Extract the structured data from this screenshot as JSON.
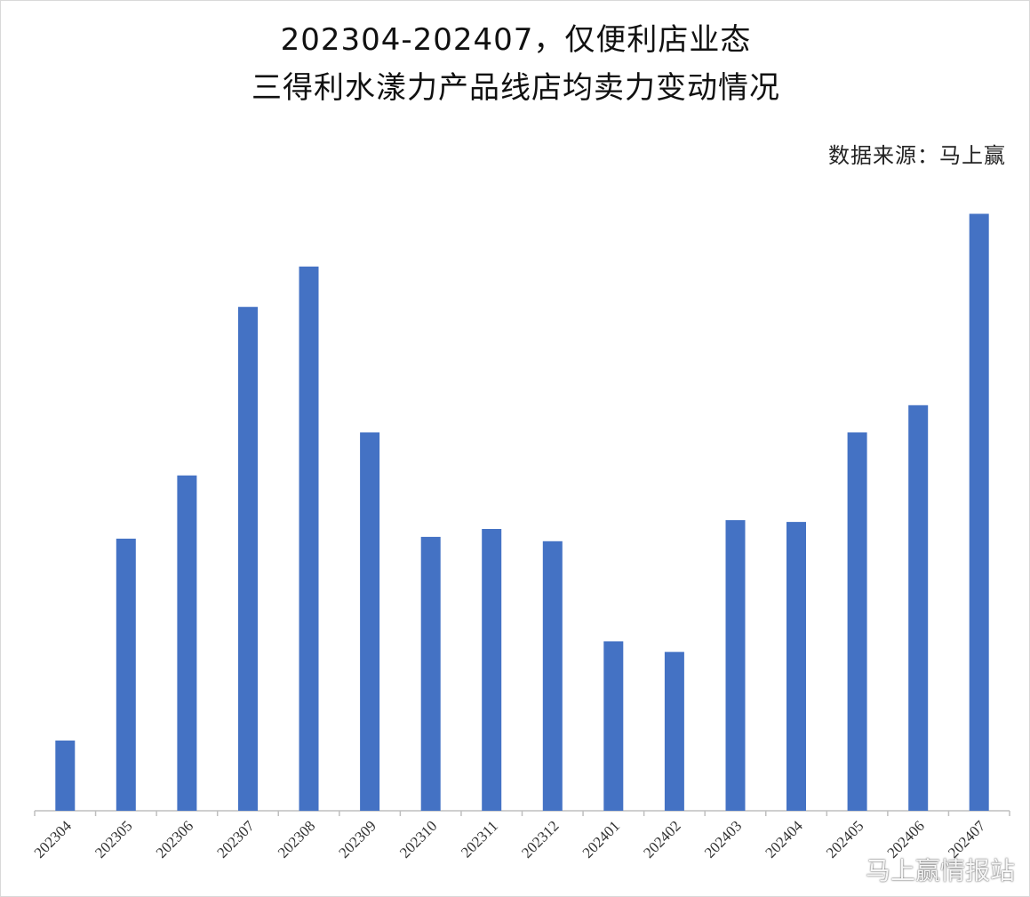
{
  "chart_data": {
    "type": "bar",
    "title_line1": "202304-202407，仅便利店业态",
    "title_line2": "三得利水漾力产品线店均卖力变动情况",
    "source": "数据来源：马上赢",
    "categories": [
      "202304",
      "202305",
      "202306",
      "202307",
      "202308",
      "202309",
      "202310",
      "202311",
      "202312",
      "202401",
      "202402",
      "202403",
      "202404",
      "202405",
      "202406",
      "202407"
    ],
    "values": [
      8.0,
      31.0,
      38.2,
      57.4,
      62.0,
      43.1,
      31.2,
      32.1,
      30.7,
      19.3,
      18.1,
      33.1,
      32.9,
      43.1,
      46.2,
      68.0
    ],
    "ylim": [
      0,
      72
    ],
    "bar_color": "#4472c4",
    "axis_color": "#bfbfbf",
    "grid": false,
    "legend": "none"
  },
  "watermark": {
    "text": "马上赢情报站",
    "icon": "weibo-icon"
  }
}
